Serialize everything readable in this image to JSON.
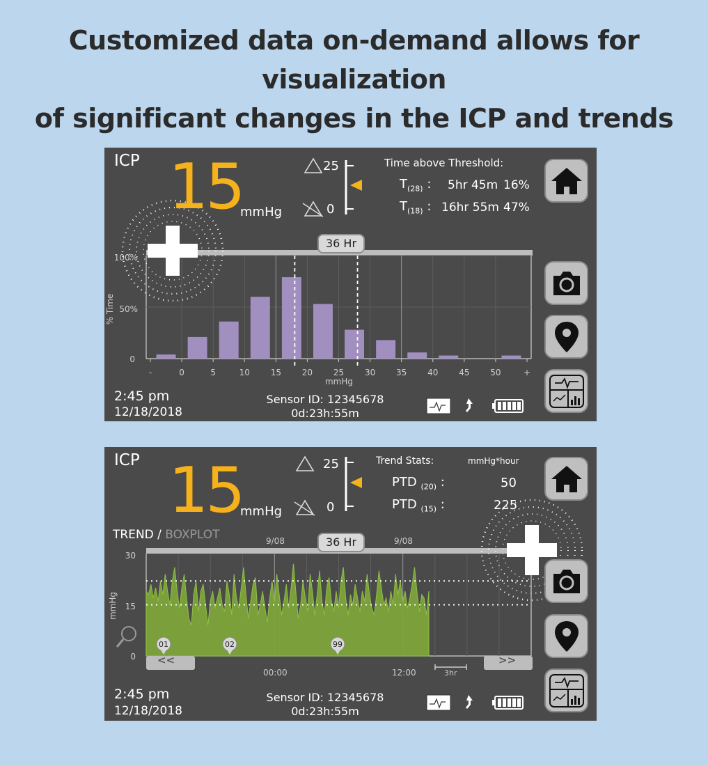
{
  "headline": {
    "line1": "Customized data on-demand allows for visualization",
    "line2": "of significant changes in the ICP and trends"
  },
  "panel1": {
    "title": "ICP",
    "value": "15",
    "unit": "mmHg",
    "upper_threshold": "25",
    "lower_threshold": "0",
    "tat_title": "Time above Threshold:",
    "t1_label": "T",
    "t1_sub": "(28)",
    "t1_time": "5hr 45m",
    "t1_pct": "16%",
    "t2_label": "T",
    "t2_sub": "(18)",
    "t2_time": "16hr 55m",
    "t2_pct": "47%",
    "range_pill": "36 Hr",
    "time": "2:45 pm",
    "date": "12/18/2018",
    "sensor": "Sensor ID: 12345678",
    "duration": "0d:23h:55m"
  },
  "panel2": {
    "title": "ICP",
    "value": "15",
    "unit": "mmHg",
    "upper_threshold": "25",
    "lower_threshold": "0",
    "stats_title": "Trend Stats:",
    "stats_unit": "mmHg*hour",
    "ptd1_label": "PTD",
    "ptd1_sub": "(20)",
    "ptd1_val": "50",
    "ptd2_label": "PTD",
    "ptd2_sub": "(15)",
    "ptd2_val": "225",
    "tab_trend": "TREND",
    "tab_sep": "/",
    "tab_boxplot": "BOXPLOT",
    "date_left": "9/08",
    "date_right": "9/08",
    "range_pill": "36 Hr",
    "markers": [
      "01",
      "02",
      "99"
    ],
    "time_left": "00:00",
    "time_right": "12:00",
    "scale": "3hr",
    "nav_left": "<<",
    "nav_right": ">>",
    "time": "2:45 pm",
    "date": "12/18/2018",
    "sensor": "Sensor ID: 12345678",
    "duration": "0d:23h:55m"
  },
  "chart_data": [
    {
      "type": "bar",
      "title": "",
      "xlabel": "mmHg",
      "ylabel": "% Time",
      "ylim": [
        0,
        100
      ],
      "y_ticks": [
        "0",
        "50%",
        "100%"
      ],
      "x_ticks": [
        "-",
        "0",
        "5",
        "10",
        "15",
        "20",
        "25",
        "30",
        "35",
        "40",
        "45",
        "50",
        "+"
      ],
      "categories": [
        "<0",
        "0-5",
        "5-10",
        "10-15",
        "15-20",
        "20-25",
        "25-30",
        "30-35",
        "35-40",
        "40-45",
        "45-50",
        ">50"
      ],
      "values": [
        4,
        21,
        36,
        60,
        79,
        53,
        28,
        18,
        6,
        3,
        0,
        3
      ],
      "bar_color": "#a18fc0",
      "threshold_lines_mmHg": [
        18,
        28
      ],
      "grid": true
    },
    {
      "type": "area",
      "title": "",
      "ylabel": "mmHg",
      "ylim": [
        0,
        30
      ],
      "y_ticks": [
        "0",
        "15",
        "30"
      ],
      "x_ticks": [
        "00:00",
        "12:00"
      ],
      "threshold_lines_mmHg": [
        15,
        22
      ],
      "fill_color": "#7da43a",
      "series": [
        {
          "values": [
            19,
            18,
            21,
            17,
            20,
            16,
            22,
            18,
            24,
            19,
            15,
            22,
            26,
            19,
            14,
            20,
            24,
            17,
            11,
            9,
            18,
            22,
            13,
            19,
            21,
            15,
            9,
            16,
            19,
            14,
            17,
            20,
            15,
            13,
            22,
            18,
            12,
            24,
            17,
            14,
            20,
            26,
            18,
            11,
            16,
            21,
            23,
            12,
            15,
            19,
            14,
            10,
            17,
            22,
            16,
            24,
            18,
            12,
            16,
            21,
            14,
            20,
            27,
            19,
            11,
            15,
            22,
            17,
            13,
            24,
            19,
            12,
            18,
            25,
            16,
            12,
            20,
            23,
            16,
            13,
            19,
            14,
            22,
            26,
            17,
            12,
            18,
            15,
            21,
            17,
            13,
            19,
            16,
            24,
            18,
            14,
            12,
            18,
            25,
            20,
            15,
            17,
            13,
            19,
            15,
            24,
            18,
            22,
            16,
            19,
            14,
            17,
            21,
            26,
            19,
            13,
            18,
            17,
            12,
            19
          ]
        }
      ]
    }
  ]
}
